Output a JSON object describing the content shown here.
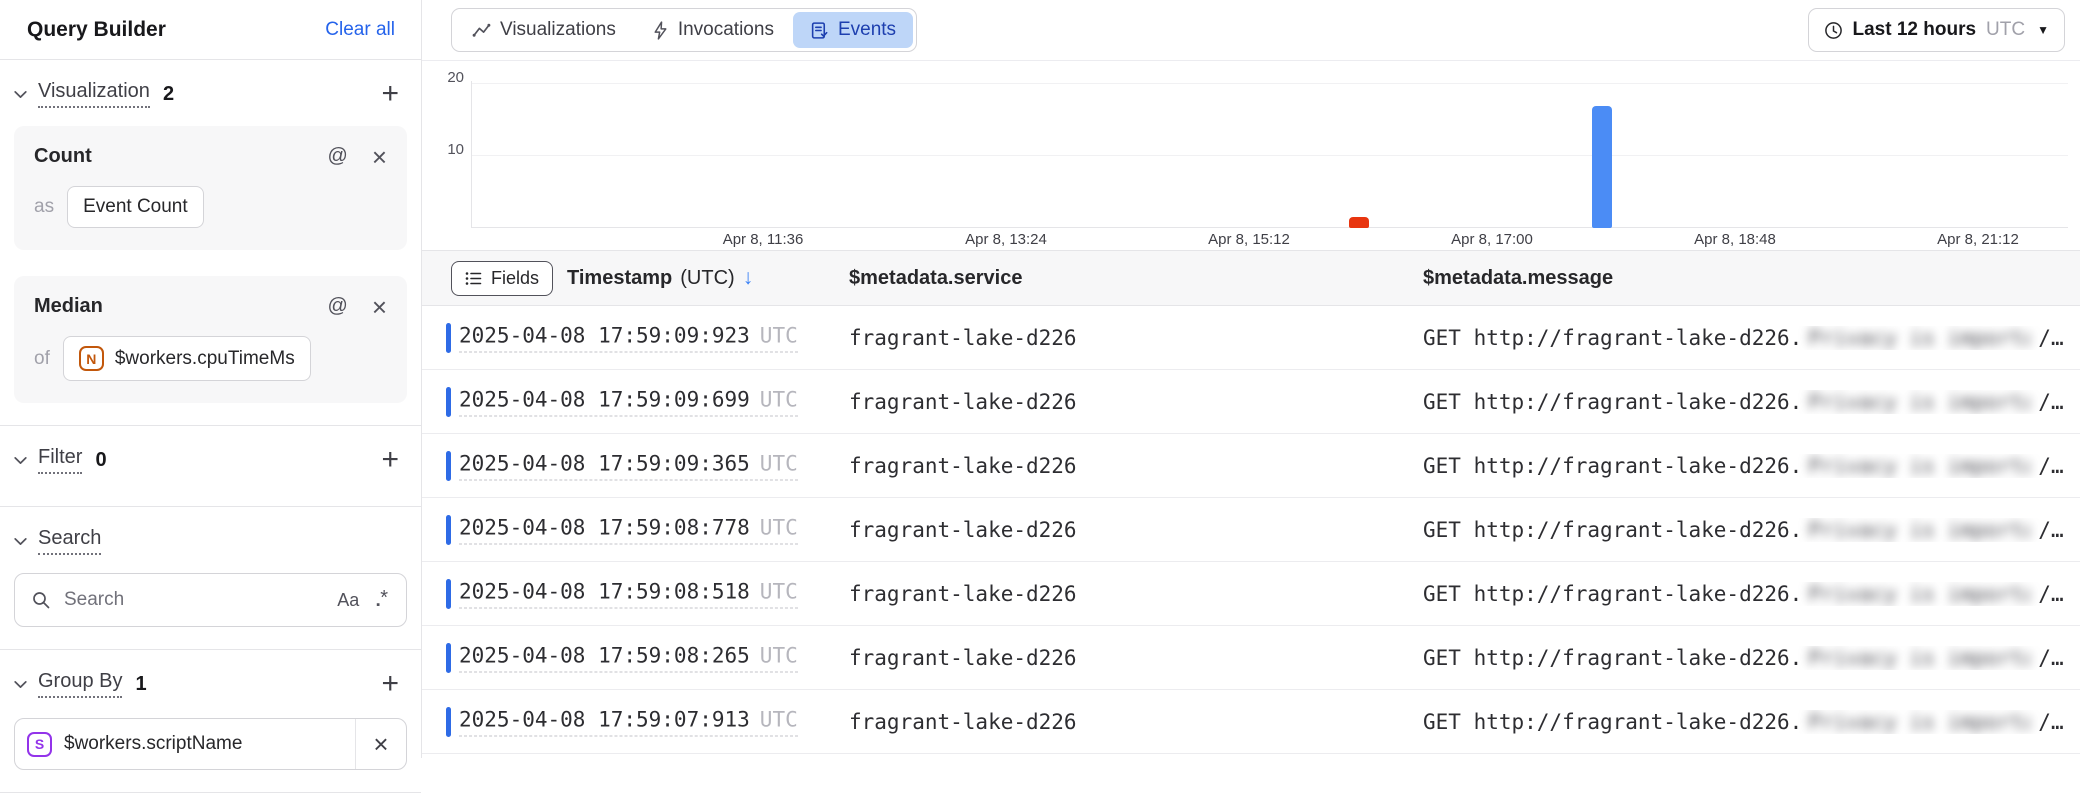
{
  "sidebar": {
    "title": "Query Builder",
    "clear_all_label": "Clear all",
    "visualization_section": {
      "label": "Visualization",
      "count": "2"
    },
    "count_card": {
      "title": "Count",
      "prefix": "as",
      "value": "Event Count"
    },
    "median_card": {
      "title": "Median",
      "prefix": "of",
      "badge": "N",
      "value": "$workers.cpuTimeMs"
    },
    "filter_section": {
      "label": "Filter",
      "count": "0"
    },
    "search_section": {
      "label": "Search",
      "placeholder": "Search",
      "case_toggle_label": "Aa",
      "regex_square": "▪",
      "regex_star": "*"
    },
    "group_by_section": {
      "label": "Group By",
      "count": "1"
    },
    "group_chip": {
      "badge": "S",
      "value": "$workers.scriptName"
    }
  },
  "topbar": {
    "tabs": [
      {
        "label": "Visualizations",
        "icon": "chart-line-icon",
        "active": false
      },
      {
        "label": "Invocations",
        "icon": "lightning-icon",
        "active": false
      },
      {
        "label": "Events",
        "icon": "events-doc-icon",
        "active": true
      }
    ],
    "time_button": {
      "label": "Last 12 hours",
      "timezone": "UTC"
    }
  },
  "chart_data": {
    "type": "bar",
    "title": "",
    "xlabel": "",
    "ylabel": "",
    "ylim": [
      0,
      21
    ],
    "grid": true,
    "legend": false,
    "y_ticks": [
      {
        "value": 20,
        "label": "20"
      },
      {
        "value": 10,
        "label": "10"
      }
    ],
    "x_ticks": [
      "Apr 8, 11:36",
      "Apr 8, 13:24",
      "Apr 8, 15:12",
      "Apr 8, 17:00",
      "Apr 8, 18:48",
      "Apr 8, 21:12"
    ],
    "bars": [
      {
        "time": "Apr 8, 16:01",
        "value": 1.5,
        "color": "#e8350f"
      },
      {
        "time": "Apr 8, 17:49",
        "value": 17,
        "color": "#4b8cf5"
      }
    ]
  },
  "table": {
    "fields_button_label": "Fields",
    "header": {
      "timestamp": "Timestamp",
      "timestamp_tz": "(UTC)",
      "sort_icon": "↓",
      "service": "$metadata.service",
      "message": "$metadata.message"
    },
    "rows": [
      {
        "timestamp": "2025-04-08 17:59:09:923",
        "tz": "UTC",
        "service": "fragrant-lake-d226",
        "message_prefix": "GET http://fragrant-lake-d226.",
        "message_redacted": "Privacy is important!",
        "message_suffix": "/…"
      },
      {
        "timestamp": "2025-04-08 17:59:09:699",
        "tz": "UTC",
        "service": "fragrant-lake-d226",
        "message_prefix": "GET http://fragrant-lake-d226.",
        "message_redacted": "Privacy is important!",
        "message_suffix": "/…"
      },
      {
        "timestamp": "2025-04-08 17:59:09:365",
        "tz": "UTC",
        "service": "fragrant-lake-d226",
        "message_prefix": "GET http://fragrant-lake-d226.",
        "message_redacted": "Privacy is important!",
        "message_suffix": "/…"
      },
      {
        "timestamp": "2025-04-08 17:59:08:778",
        "tz": "UTC",
        "service": "fragrant-lake-d226",
        "message_prefix": "GET http://fragrant-lake-d226.",
        "message_redacted": "Privacy is important!",
        "message_suffix": "/…"
      },
      {
        "timestamp": "2025-04-08 17:59:08:518",
        "tz": "UTC",
        "service": "fragrant-lake-d226",
        "message_prefix": "GET http://fragrant-lake-d226.",
        "message_redacted": "Privacy is important!",
        "message_suffix": "/…"
      },
      {
        "timestamp": "2025-04-08 17:59:08:265",
        "tz": "UTC",
        "service": "fragrant-lake-d226",
        "message_prefix": "GET http://fragrant-lake-d226.",
        "message_redacted": "Privacy is important!",
        "message_suffix": "/…"
      },
      {
        "timestamp": "2025-04-08 17:59:07:913",
        "tz": "UTC",
        "service": "fragrant-lake-d226",
        "message_prefix": "GET http://fragrant-lake-d226.",
        "message_redacted": "Privacy is important!",
        "message_suffix": "/…"
      }
    ]
  },
  "colors": {
    "accent_blue": "#2563eb",
    "tab_active_bg": "#bed6f8",
    "tab_active_text": "#1d3faf",
    "bar_blue": "#4b8cf5",
    "bar_red": "#e8350f",
    "row_indicator": "#2e6be6",
    "badge_orange": "#c2570b",
    "badge_purple": "#9333ea"
  }
}
